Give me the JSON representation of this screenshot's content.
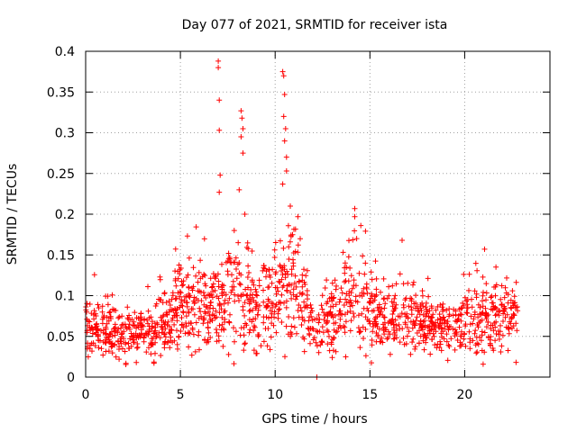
{
  "chart_data": {
    "type": "scatter",
    "title": "Day 077 of 2021, SRMTID for receiver ista",
    "xlabel": "GPS time / hours",
    "ylabel": "SRMTID / TECUs",
    "xlim": [
      0,
      24.5
    ],
    "ylim": [
      0,
      0.4
    ],
    "xticks": [
      0,
      5,
      10,
      15,
      20
    ],
    "yticks": [
      0,
      0.05,
      0.1,
      0.15,
      0.2,
      0.25,
      0.3,
      0.35,
      0.4
    ],
    "xtick_labels": [
      "0",
      "5",
      "10",
      "15",
      "20"
    ],
    "ytick_labels": [
      "0",
      "0.05",
      "0.1",
      "0.15",
      "0.2",
      "0.25",
      "0.3",
      "0.35",
      "0.4"
    ],
    "grid": true,
    "marker": "+",
    "color": "#ff0000",
    "x_data_range": [
      0,
      22.8
    ],
    "baseline_profile": [
      {
        "x": 0.0,
        "y": 0.06
      },
      {
        "x": 2.0,
        "y": 0.05
      },
      {
        "x": 3.5,
        "y": 0.055
      },
      {
        "x": 5.0,
        "y": 0.09
      },
      {
        "x": 6.5,
        "y": 0.08
      },
      {
        "x": 8.0,
        "y": 0.11
      },
      {
        "x": 9.0,
        "y": 0.08
      },
      {
        "x": 10.0,
        "y": 0.11
      },
      {
        "x": 11.0,
        "y": 0.12
      },
      {
        "x": 12.0,
        "y": 0.06
      },
      {
        "x": 13.0,
        "y": 0.07
      },
      {
        "x": 14.0,
        "y": 0.1
      },
      {
        "x": 15.0,
        "y": 0.08
      },
      {
        "x": 17.0,
        "y": 0.07
      },
      {
        "x": 19.0,
        "y": 0.06
      },
      {
        "x": 21.0,
        "y": 0.07
      },
      {
        "x": 22.8,
        "y": 0.07
      }
    ],
    "spikes": [
      {
        "x": 7.0,
        "y": 0.388
      },
      {
        "x": 7.0,
        "y": 0.38
      },
      {
        "x": 7.05,
        "y": 0.34
      },
      {
        "x": 7.05,
        "y": 0.303
      },
      {
        "x": 7.1,
        "y": 0.248
      },
      {
        "x": 7.05,
        "y": 0.227
      },
      {
        "x": 8.2,
        "y": 0.327
      },
      {
        "x": 8.25,
        "y": 0.318
      },
      {
        "x": 8.3,
        "y": 0.305
      },
      {
        "x": 8.2,
        "y": 0.295
      },
      {
        "x": 8.3,
        "y": 0.275
      },
      {
        "x": 8.1,
        "y": 0.23
      },
      {
        "x": 8.4,
        "y": 0.2
      },
      {
        "x": 10.4,
        "y": 0.375
      },
      {
        "x": 10.45,
        "y": 0.37
      },
      {
        "x": 10.5,
        "y": 0.347
      },
      {
        "x": 10.45,
        "y": 0.32
      },
      {
        "x": 10.55,
        "y": 0.305
      },
      {
        "x": 10.5,
        "y": 0.29
      },
      {
        "x": 10.6,
        "y": 0.27
      },
      {
        "x": 10.6,
        "y": 0.253
      },
      {
        "x": 10.4,
        "y": 0.237
      },
      {
        "x": 10.8,
        "y": 0.21
      },
      {
        "x": 11.2,
        "y": 0.197
      },
      {
        "x": 14.2,
        "y": 0.207
      },
      {
        "x": 14.2,
        "y": 0.197
      },
      {
        "x": 14.3,
        "y": 0.17
      },
      {
        "x": 16.7,
        "y": 0.168
      },
      {
        "x": 21.05,
        "y": 0.157
      },
      {
        "x": 12.2,
        "y": 0.0
      }
    ]
  }
}
